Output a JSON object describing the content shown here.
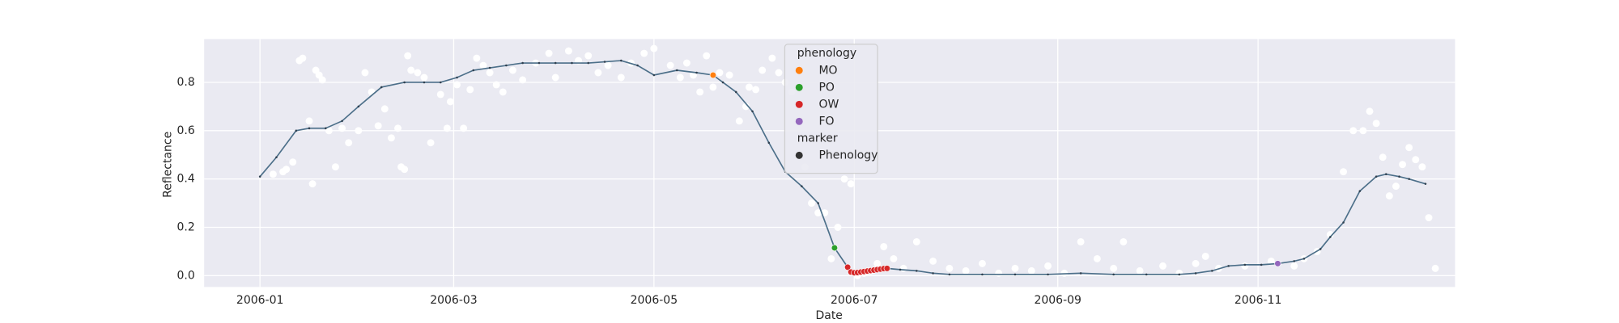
{
  "chart_data": {
    "type": "scatter",
    "xlabel": "Date",
    "ylabel": "Reflectance",
    "xlim": [
      -17,
      364
    ],
    "ylim": [
      -0.047,
      0.979
    ],
    "xticks": [
      {
        "value": 0,
        "label": "2006-01"
      },
      {
        "value": 59,
        "label": "2006-03"
      },
      {
        "value": 120,
        "label": "2006-05"
      },
      {
        "value": 181,
        "label": "2006-07"
      },
      {
        "value": 243,
        "label": "2006-09"
      },
      {
        "value": 304,
        "label": "2006-11"
      }
    ],
    "yticks": [
      {
        "value": 0,
        "label": "0.0"
      },
      {
        "value": 0.2,
        "label": "0.2"
      },
      {
        "value": 0.4,
        "label": "0.4"
      },
      {
        "value": 0.6,
        "label": "0.6"
      },
      {
        "value": 0.8,
        "label": "0.8"
      }
    ],
    "grid": true,
    "observations": {
      "color": "#ffffff",
      "x": [
        4,
        7,
        8,
        10,
        12,
        13,
        15,
        16,
        17,
        18,
        19,
        21,
        23,
        25,
        27,
        30,
        32,
        34,
        36,
        38,
        40,
        42,
        43,
        44,
        45,
        46,
        48,
        50,
        52,
        55,
        57,
        58,
        60,
        62,
        64,
        66,
        68,
        70,
        72,
        74,
        77,
        80,
        84,
        88,
        90,
        94,
        97,
        100,
        103,
        106,
        110,
        113,
        117,
        120,
        125,
        128,
        130,
        132,
        134,
        136,
        138,
        140,
        143,
        146,
        148,
        149,
        151,
        153,
        156,
        158,
        160,
        162,
        164,
        166,
        168,
        170,
        172,
        174,
        176,
        178,
        180,
        182,
        184,
        186,
        188,
        190,
        193,
        196,
        200,
        205,
        210,
        215,
        220,
        225,
        230,
        235,
        240,
        245,
        250,
        255,
        260,
        263,
        268,
        275,
        280,
        285,
        288,
        292,
        300,
        308,
        315,
        318,
        322,
        326,
        330,
        333,
        336,
        338,
        340,
        342,
        344,
        346,
        348,
        350,
        352,
        354,
        356,
        358
      ],
      "values": [
        0.42,
        0.43,
        0.44,
        0.47,
        0.89,
        0.9,
        0.64,
        0.38,
        0.85,
        0.83,
        0.81,
        0.6,
        0.45,
        0.61,
        0.55,
        0.6,
        0.84,
        0.76,
        0.62,
        0.69,
        0.57,
        0.61,
        0.45,
        0.44,
        0.91,
        0.85,
        0.84,
        0.82,
        0.55,
        0.75,
        0.61,
        0.72,
        0.79,
        0.61,
        0.77,
        0.9,
        0.87,
        0.84,
        0.79,
        0.76,
        0.85,
        0.81,
        0.88,
        0.92,
        0.82,
        0.93,
        0.89,
        0.91,
        0.84,
        0.87,
        0.82,
        0.88,
        0.92,
        0.94,
        0.87,
        0.82,
        0.88,
        0.83,
        0.76,
        0.91,
        0.78,
        0.84,
        0.83,
        0.64,
        0.7,
        0.78,
        0.77,
        0.85,
        0.9,
        0.84,
        0.8,
        0.76,
        0.64,
        0.45,
        0.3,
        0.26,
        0.26,
        0.07,
        0.2,
        0.4,
        0.38,
        0.0,
        0.01,
        0.02,
        0.05,
        0.12,
        0.07,
        0.03,
        0.14,
        0.06,
        0.03,
        0.02,
        0.05,
        0.01,
        0.03,
        0.02,
        0.04,
        0.01,
        0.14,
        0.07,
        0.03,
        0.14,
        0.02,
        0.04,
        0.01,
        0.05,
        0.08,
        0.03,
        0.04,
        0.06,
        0.04,
        0.07,
        0.1,
        0.17,
        0.43,
        0.6,
        0.6,
        0.68,
        0.63,
        0.49,
        0.33,
        0.37,
        0.46,
        0.53,
        0.48,
        0.45,
        0.24,
        0.03
      ]
    },
    "line": {
      "color": "#4c6f89",
      "x": [
        0,
        5,
        11,
        15,
        20,
        25,
        30,
        37,
        44,
        50,
        55,
        60,
        65,
        70,
        75,
        80,
        85,
        90,
        95,
        100,
        105,
        110,
        115,
        120,
        127,
        133,
        138,
        141,
        145,
        150,
        155,
        160,
        165,
        170,
        175,
        179,
        180,
        185,
        191,
        195,
        200,
        205,
        210,
        220,
        230,
        240,
        250,
        260,
        270,
        280,
        285,
        290,
        295,
        300,
        305,
        310,
        315,
        318,
        323,
        326,
        330,
        335,
        340,
        343,
        347,
        350,
        355
      ],
      "values": [
        0.41,
        0.49,
        0.6,
        0.61,
        0.61,
        0.64,
        0.7,
        0.78,
        0.8,
        0.8,
        0.8,
        0.82,
        0.85,
        0.86,
        0.87,
        0.88,
        0.88,
        0.88,
        0.88,
        0.88,
        0.885,
        0.89,
        0.87,
        0.83,
        0.85,
        0.84,
        0.83,
        0.8,
        0.76,
        0.68,
        0.55,
        0.43,
        0.37,
        0.3,
        0.115,
        0.035,
        0.015,
        0.02,
        0.03,
        0.025,
        0.02,
        0.01,
        0.005,
        0.005,
        0.005,
        0.005,
        0.01,
        0.005,
        0.005,
        0.005,
        0.01,
        0.02,
        0.04,
        0.045,
        0.045,
        0.05,
        0.06,
        0.07,
        0.11,
        0.16,
        0.22,
        0.35,
        0.41,
        0.42,
        0.41,
        0.4,
        0.38
      ]
    },
    "series": [
      {
        "name": "MO",
        "color": "#ff7f0e",
        "x": [
          138
        ],
        "values": [
          0.83
        ]
      },
      {
        "name": "PO",
        "color": "#2ca02c",
        "x": [
          175
        ],
        "values": [
          0.115
        ]
      },
      {
        "name": "OW",
        "color": "#d62728",
        "x": [
          179,
          180,
          181,
          182,
          183,
          184,
          185,
          186,
          187,
          188,
          189,
          190,
          191
        ],
        "values": [
          0.035,
          0.015,
          0.012,
          0.013,
          0.015,
          0.017,
          0.019,
          0.021,
          0.023,
          0.025,
          0.027,
          0.029,
          0.03
        ]
      },
      {
        "name": "FO",
        "color": "#9467bd",
        "x": [
          310
        ],
        "values": [
          0.05
        ]
      }
    ],
    "legend": {
      "title": "phenology",
      "marker_title": "marker",
      "marker_entries": [
        "Phenology"
      ],
      "marker_color": "#333333"
    }
  }
}
